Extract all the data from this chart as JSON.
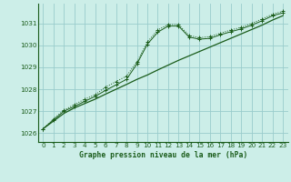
{
  "title": "Graphe pression niveau de la mer (hPa)",
  "background_color": "#cceee8",
  "plot_bg_color": "#cceee8",
  "line_color": "#1a5c1a",
  "grid_color": "#99cccc",
  "xlim": [
    -0.5,
    23.5
  ],
  "ylim": [
    1025.6,
    1031.9
  ],
  "yticks": [
    1026,
    1027,
    1028,
    1029,
    1030,
    1031
  ],
  "xticks": [
    0,
    1,
    2,
    3,
    4,
    5,
    6,
    7,
    8,
    9,
    10,
    11,
    12,
    13,
    14,
    15,
    16,
    17,
    18,
    19,
    20,
    21,
    22,
    23
  ],
  "series1_x": [
    0,
    1,
    2,
    3,
    4,
    5,
    6,
    7,
    8,
    9,
    10,
    11,
    12,
    13,
    14,
    15,
    16,
    17,
    18,
    19,
    20,
    21,
    22,
    23
  ],
  "series1_y": [
    1026.2,
    1026.55,
    1026.9,
    1027.15,
    1027.35,
    1027.55,
    1027.78,
    1028.0,
    1028.22,
    1028.45,
    1028.65,
    1028.88,
    1029.1,
    1029.32,
    1029.52,
    1029.72,
    1029.92,
    1030.12,
    1030.32,
    1030.52,
    1030.72,
    1030.92,
    1031.15,
    1031.35
  ],
  "series2_x": [
    0,
    1,
    2,
    3,
    4,
    5,
    6,
    7,
    8,
    9,
    10,
    11,
    12,
    13,
    14,
    15,
    16,
    17,
    18,
    19,
    20,
    21,
    22,
    23
  ],
  "series2_y": [
    1026.2,
    1026.65,
    1027.05,
    1027.3,
    1027.55,
    1027.75,
    1028.1,
    1028.35,
    1028.6,
    1029.25,
    1030.15,
    1030.7,
    1030.95,
    1030.95,
    1030.45,
    1030.35,
    1030.4,
    1030.55,
    1030.7,
    1030.82,
    1031.0,
    1031.2,
    1031.42,
    1031.55
  ],
  "series3_x": [
    0,
    1,
    2,
    3,
    4,
    5,
    6,
    7,
    8,
    9,
    10,
    11,
    12,
    13,
    14,
    15,
    16,
    17,
    18,
    19,
    20,
    21,
    22,
    23
  ],
  "series3_y": [
    1026.2,
    1026.6,
    1027.0,
    1027.22,
    1027.45,
    1027.68,
    1027.95,
    1028.2,
    1028.45,
    1029.15,
    1030.05,
    1030.6,
    1030.88,
    1030.88,
    1030.38,
    1030.28,
    1030.32,
    1030.48,
    1030.62,
    1030.75,
    1030.92,
    1031.12,
    1031.35,
    1031.48
  ],
  "xlabel_fontsize": 5.8,
  "ylabel_fontsize": 5.5,
  "tick_fontsize": 5.2
}
